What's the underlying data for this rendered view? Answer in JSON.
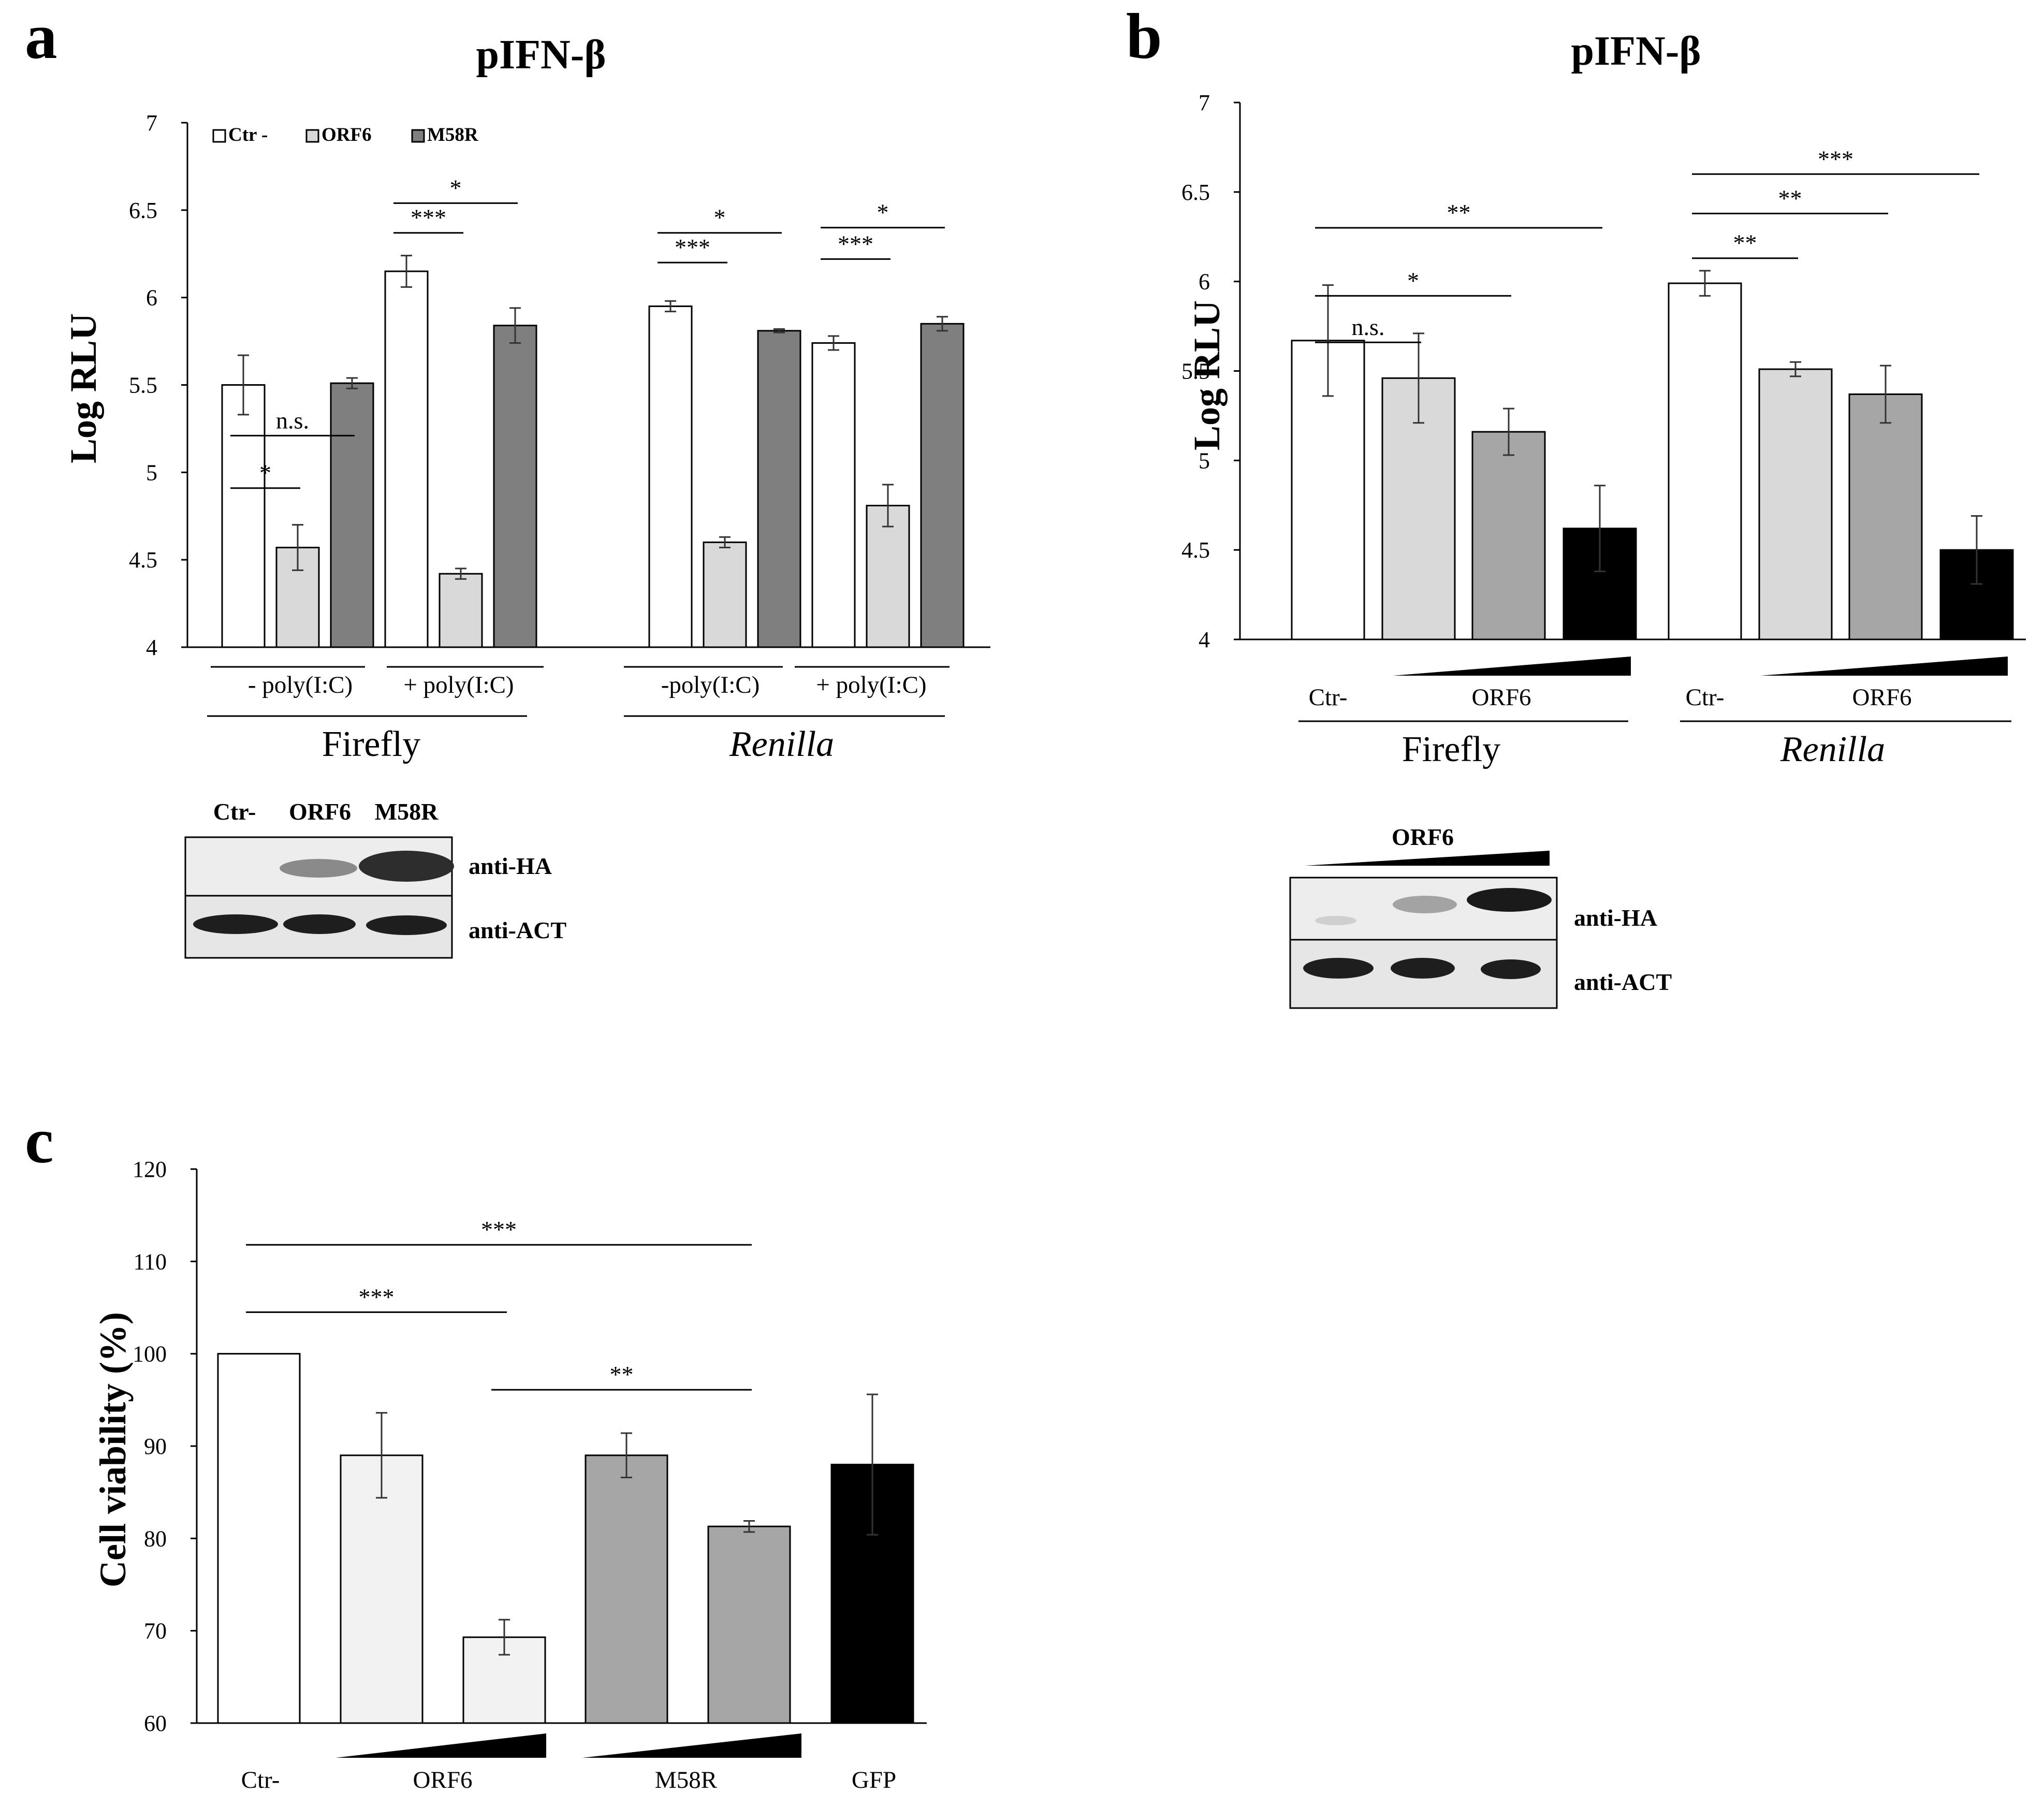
{
  "colors": {
    "ctr": "#ffffff",
    "orf6_light": "#d9d9d9",
    "m58r_dark": "#7f7f7f",
    "orf6_mid": "#a6a6a6",
    "black": "#000000",
    "c_light": "#f2f2f2",
    "c_gray": "#a6a6a6"
  },
  "panel_a": {
    "letter": "a",
    "blot": {
      "lanes": [
        "Ctr-",
        "ORF6",
        "M58R"
      ],
      "rows": [
        "anti-HA",
        "anti-ACT"
      ]
    }
  },
  "panel_b": {
    "letter": "b",
    "blot": {
      "header": "ORF6",
      "rows": [
        "anti-HA",
        "anti-ACT"
      ]
    }
  },
  "panel_c": {
    "letter": "c"
  },
  "chart_data": [
    {
      "id": "a",
      "type": "bar",
      "title": "pIFN-β",
      "ylabel": "Log RLU",
      "ylim": [
        4,
        7
      ],
      "yticks": [
        "4",
        "4.5",
        "5",
        "5.5",
        "6",
        "6.5",
        "7"
      ],
      "ytick_values": [
        4,
        4.5,
        5,
        5.5,
        6,
        6.5,
        7
      ],
      "legend": [
        {
          "name": "Ctr -",
          "color": "#ffffff"
        },
        {
          "name": "ORF6",
          "color": "#d9d9d9"
        },
        {
          "name": "M58R",
          "color": "#7f7f7f"
        }
      ],
      "groups": [
        {
          "label": "- poly(I:C)",
          "values": [
            5.5,
            4.57,
            5.51
          ],
          "errors": [
            0.17,
            0.13,
            0.03
          ]
        },
        {
          "label": "+ poly(I:C)",
          "values": [
            6.15,
            4.42,
            5.84
          ],
          "errors": [
            0.09,
            0.03,
            0.1
          ]
        },
        {
          "label": "-poly(I:C)",
          "values": [
            5.95,
            4.6,
            5.81
          ],
          "errors": [
            0.03,
            0.03,
            0.01
          ]
        },
        {
          "label": "+ poly(I:C)",
          "values": [
            5.74,
            4.81,
            5.85
          ],
          "errors": [
            0.04,
            0.12,
            0.04
          ]
        }
      ],
      "supergroups": [
        {
          "label": "Firefly",
          "italic": false
        },
        {
          "label": "Renilla",
          "italic": true
        }
      ],
      "annotations": [
        {
          "text": "*",
          "from_bar": 0,
          "to_bar": 1,
          "level": 4.91
        },
        {
          "text": "n.s.",
          "from_bar": 0,
          "to_bar": 2,
          "level": 5.21
        },
        {
          "text": "***",
          "from_bar": 3,
          "to_bar": 4,
          "level": 6.37
        },
        {
          "text": "*",
          "from_bar": 3,
          "to_bar": 5,
          "level": 6.54
        },
        {
          "text": "***",
          "from_bar": 6,
          "to_bar": 7,
          "level": 6.2
        },
        {
          "text": "*",
          "from_bar": 6,
          "to_bar": 8,
          "level": 6.37
        },
        {
          "text": "***",
          "from_bar": 9,
          "to_bar": 10,
          "level": 6.22
        },
        {
          "text": "*",
          "from_bar": 9,
          "to_bar": 11,
          "level": 6.4
        }
      ]
    },
    {
      "id": "b",
      "type": "bar",
      "title": "pIFN-β",
      "ylabel": "Log RLU",
      "ylim": [
        4,
        7
      ],
      "yticks": [
        "4",
        "4.5",
        "5",
        "5.5",
        "6",
        "6.5",
        "7"
      ],
      "ytick_values": [
        4,
        4.5,
        5,
        5.5,
        6,
        6.5,
        7
      ],
      "groups": [
        {
          "ctr_label": "Ctr-",
          "dose_label": "ORF6",
          "values": [
            5.67,
            5.46,
            5.16,
            4.62
          ],
          "errors": [
            0.31,
            0.25,
            0.13,
            0.24
          ]
        },
        {
          "ctr_label": "Ctr-",
          "dose_label": "ORF6",
          "values": [
            5.99,
            5.51,
            5.37,
            4.5
          ],
          "errors": [
            0.07,
            0.04,
            0.16,
            0.19
          ]
        }
      ],
      "supergroups": [
        {
          "label": "Firefly",
          "italic": false
        },
        {
          "label": "Renilla",
          "italic": true
        }
      ],
      "annotations": [
        {
          "text": "n.s.",
          "from_bar": 0,
          "to_bar": 1,
          "level": 5.66
        },
        {
          "text": "*",
          "from_bar": 0,
          "to_bar": 2,
          "level": 5.92
        },
        {
          "text": "**",
          "from_bar": 0,
          "to_bar": 3,
          "level": 6.3
        },
        {
          "text": "**",
          "from_bar": 4,
          "to_bar": 5,
          "level": 6.13
        },
        {
          "text": "**",
          "from_bar": 4,
          "to_bar": 6,
          "level": 6.38
        },
        {
          "text": "***",
          "from_bar": 4,
          "to_bar": 7,
          "level": 6.6
        }
      ]
    },
    {
      "id": "c",
      "type": "bar",
      "ylabel": "Cell viability (%)",
      "ylim": [
        60,
        120
      ],
      "yticks": [
        "60",
        "70",
        "80",
        "90",
        "100",
        "110",
        "120"
      ],
      "ytick_values": [
        60,
        70,
        80,
        90,
        100,
        110,
        120
      ],
      "categories": [
        "Ctr-",
        "ORF6",
        "ORF6",
        "M58R",
        "M58R",
        "GFP"
      ],
      "values": [
        100,
        89,
        69.3,
        89,
        81.3,
        88
      ],
      "errors": [
        0,
        4.6,
        1.9,
        2.4,
        0.6,
        7.6
      ],
      "xlabels": [
        "Ctr-",
        "ORF6",
        "M58R",
        "GFP"
      ],
      "annotations": [
        {
          "text": "***",
          "from_bar": 0,
          "to_bar": 2,
          "level": 104.5
        },
        {
          "text": "***",
          "from_bar": 0,
          "to_bar": 4,
          "level": 111.8
        },
        {
          "text": "**",
          "from_bar": 2,
          "to_bar": 4,
          "level": 96.1
        }
      ]
    }
  ]
}
